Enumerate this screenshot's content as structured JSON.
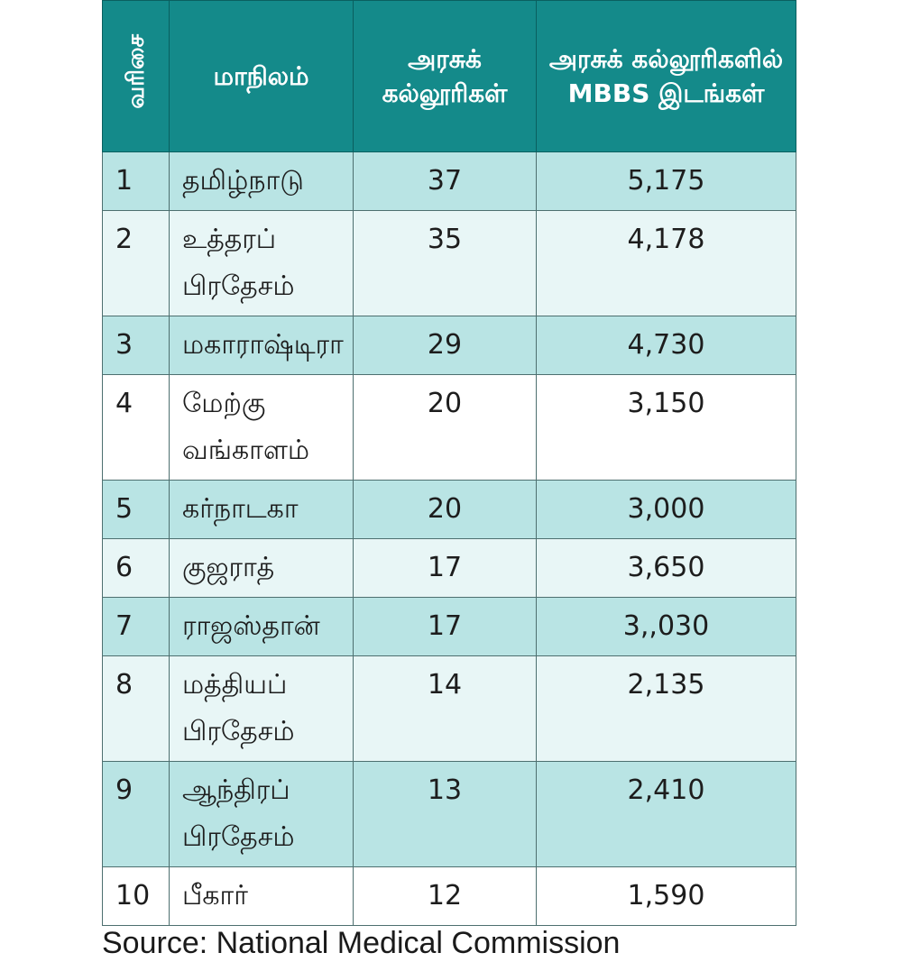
{
  "table": {
    "headers": {
      "rank": "வரிசை",
      "state": "மாநிலம்",
      "colleges": "அரசுக் கல்லூரிகள்",
      "seats": "அரசுக் கல்லூரிகளில் MBBS இடங்கள்"
    },
    "rows": [
      {
        "rank": "1",
        "state": "தமிழ்நாடு",
        "colleges": "37",
        "seats": "5,175"
      },
      {
        "rank": "2",
        "state": "உத்தரப் பிரதேசம்",
        "colleges": "35",
        "seats": "4,178"
      },
      {
        "rank": "3",
        "state": "மகாராஷ்டிரா",
        "colleges": "29",
        "seats": "4,730"
      },
      {
        "rank": "4",
        "state": "மேற்கு வங்காளம்",
        "colleges": "20",
        "seats": "3,150"
      },
      {
        "rank": "5",
        "state": "கர்நாடகா",
        "colleges": "20",
        "seats": "3,000"
      },
      {
        "rank": "6",
        "state": "குஜராத்",
        "colleges": "17",
        "seats": "3,650"
      },
      {
        "rank": "7",
        "state": "ராஜஸ்தான்",
        "colleges": "17",
        "seats": "3,,030"
      },
      {
        "rank": "8",
        "state": "மத்தியப் பிரதேசம்",
        "colleges": "14",
        "seats": "2,135"
      },
      {
        "rank": "9",
        "state": "ஆந்திரப் பிரதேசம்",
        "colleges": "13",
        "seats": "2,410"
      },
      {
        "rank": "10",
        "state": "பீகார்",
        "colleges": "12",
        "seats": "1,590"
      }
    ]
  },
  "source": "Source: National Medical Commission",
  "colors": {
    "header_bg": "#148a8a",
    "row_dark": "#b9e4e4",
    "row_light": "#e8f6f6",
    "row_white": "#ffffff"
  }
}
